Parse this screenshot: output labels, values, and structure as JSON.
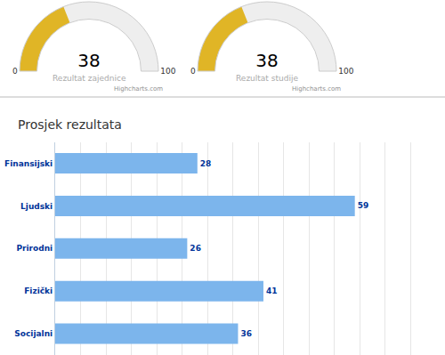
{
  "chart_data": [
    {
      "type": "gauge",
      "title": "Rezultat zajednice",
      "values": [
        38
      ],
      "color": "#e0b526",
      "ylim": [
        0,
        100
      ],
      "yticks": [
        0,
        100
      ],
      "annotations": [
        "Highcharts.com"
      ]
    },
    {
      "type": "gauge",
      "title": "Rezultat studije",
      "values": [
        38
      ],
      "color": "#e0b526",
      "ylim": [
        0,
        100
      ],
      "yticks": [
        0,
        100
      ],
      "annotations": [
        "Highcharts.com"
      ]
    },
    {
      "type": "bar",
      "title": "Prosjek rezultata",
      "orientation": "horizontal",
      "categories": [
        "Finansijski",
        "Ljudski",
        "Prirodni",
        "Fizički",
        "Socijalni"
      ],
      "values": [
        28,
        59,
        26,
        41,
        36
      ],
      "color": "#7cb5ec",
      "xlim": [
        0,
        75
      ],
      "xticks": [
        0,
        5,
        10,
        15,
        20,
        25,
        30,
        35,
        40,
        45,
        50,
        55,
        60,
        65,
        70,
        75
      ],
      "grid": true,
      "data_labels": true,
      "tick_labels": "y"
    }
  ]
}
